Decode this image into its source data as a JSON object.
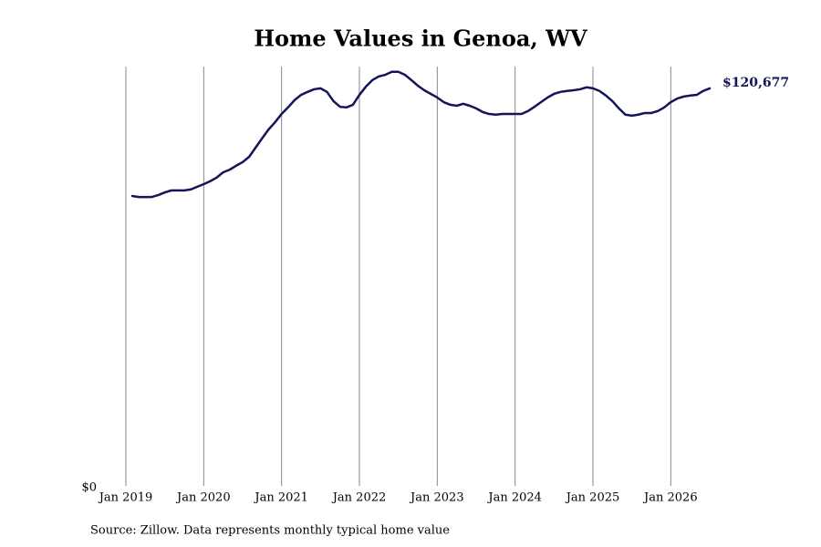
{
  "chart_data": {
    "type": "line",
    "title": "Home Values in Genoa, WV",
    "source": "Source: Zillow. Data represents monthly typical home value",
    "x": [
      "2019-02",
      "2019-03",
      "2019-04",
      "2019-05",
      "2019-06",
      "2019-07",
      "2019-08",
      "2019-09",
      "2019-10",
      "2019-11",
      "2019-12",
      "2020-01",
      "2020-02",
      "2020-03",
      "2020-04",
      "2020-05",
      "2020-06",
      "2020-07",
      "2020-08",
      "2020-09",
      "2020-10",
      "2020-11",
      "2020-12",
      "2021-01",
      "2021-02",
      "2021-03",
      "2021-04",
      "2021-05",
      "2021-06",
      "2021-07",
      "2021-08",
      "2021-09",
      "2021-10",
      "2021-11",
      "2021-12",
      "2022-01",
      "2022-02",
      "2022-03",
      "2022-04",
      "2022-05",
      "2022-06",
      "2022-07",
      "2022-08",
      "2022-09",
      "2022-10",
      "2022-11",
      "2022-12",
      "2023-01",
      "2023-02",
      "2023-03",
      "2023-04",
      "2023-05",
      "2023-06",
      "2023-07",
      "2023-08",
      "2023-09",
      "2023-10",
      "2023-11",
      "2023-12",
      "2024-01",
      "2024-02",
      "2024-03",
      "2024-04",
      "2024-05",
      "2024-06",
      "2024-07",
      "2024-08",
      "2024-09",
      "2024-10",
      "2024-11",
      "2024-12",
      "2025-01",
      "2025-02",
      "2025-03",
      "2025-04",
      "2025-05",
      "2025-06",
      "2025-07",
      "2025-08",
      "2025-09",
      "2025-10",
      "2025-11",
      "2025-12",
      "2026-01",
      "2026-02",
      "2026-03",
      "2026-04",
      "2026-05",
      "2026-06",
      "2026-07"
    ],
    "series": [
      {
        "name": "Typical home value",
        "color": "#14145a",
        "values": [
          88000,
          87700,
          87700,
          87700,
          88300,
          89100,
          89700,
          89700,
          89700,
          90000,
          90800,
          91600,
          92500,
          93600,
          95200,
          96000,
          97200,
          98300,
          99900,
          102700,
          105500,
          108200,
          110400,
          112900,
          114900,
          117100,
          118700,
          119600,
          120400,
          120700,
          119600,
          116800,
          115100,
          114900,
          115700,
          118700,
          121200,
          123200,
          124300,
          124800,
          125700,
          125700,
          124800,
          123200,
          121500,
          120100,
          119000,
          117900,
          116500,
          115700,
          115400,
          116000,
          115400,
          114600,
          113500,
          112900,
          112700,
          112900,
          112900,
          112900,
          112900,
          113800,
          115100,
          116500,
          117900,
          119000,
          119600,
          119900,
          120100,
          120400,
          121000,
          120700,
          119900,
          118500,
          116800,
          114600,
          112700,
          112400,
          112700,
          113200,
          113200,
          113800,
          114900,
          116500,
          117600,
          118200,
          118500,
          118700,
          119900,
          120677
        ],
        "value_labels": [
          null,
          null,
          null,
          null,
          null,
          null,
          null,
          null,
          null,
          null,
          null,
          null,
          null,
          null,
          null,
          null,
          null,
          null,
          null,
          null,
          null,
          null,
          null,
          null,
          null,
          null,
          null,
          null,
          null,
          null,
          null,
          null,
          null,
          null,
          null,
          null,
          null,
          null,
          null,
          null,
          null,
          null,
          null,
          null,
          null,
          null,
          null,
          null,
          null,
          null,
          null,
          null,
          null,
          null,
          null,
          null,
          null,
          null,
          null,
          null,
          null,
          null,
          null,
          null,
          null,
          null,
          null,
          null,
          null,
          null,
          null,
          null,
          null,
          null,
          null,
          null,
          null,
          null,
          null,
          null,
          null,
          null,
          null,
          null,
          null,
          null,
          null,
          null,
          null,
          "$120,677"
        ]
      }
    ],
    "xlim": [
      "2019-01",
      "2026-07"
    ],
    "xticks": [
      {
        "value": "2019-01",
        "label": "Jan 2019"
      },
      {
        "value": "2020-01",
        "label": "Jan 2020"
      },
      {
        "value": "2021-01",
        "label": "Jan 2021"
      },
      {
        "value": "2022-01",
        "label": "Jan 2022"
      },
      {
        "value": "2023-01",
        "label": "Jan 2023"
      },
      {
        "value": "2024-01",
        "label": "Jan 2024"
      },
      {
        "value": "2025-01",
        "label": "Jan 2025"
      },
      {
        "value": "2026-01",
        "label": "Jan 2026"
      }
    ],
    "ylim": [
      0,
      127300
    ],
    "yticks": [
      {
        "value": 0,
        "label": "$0"
      }
    ],
    "grid": "x"
  }
}
